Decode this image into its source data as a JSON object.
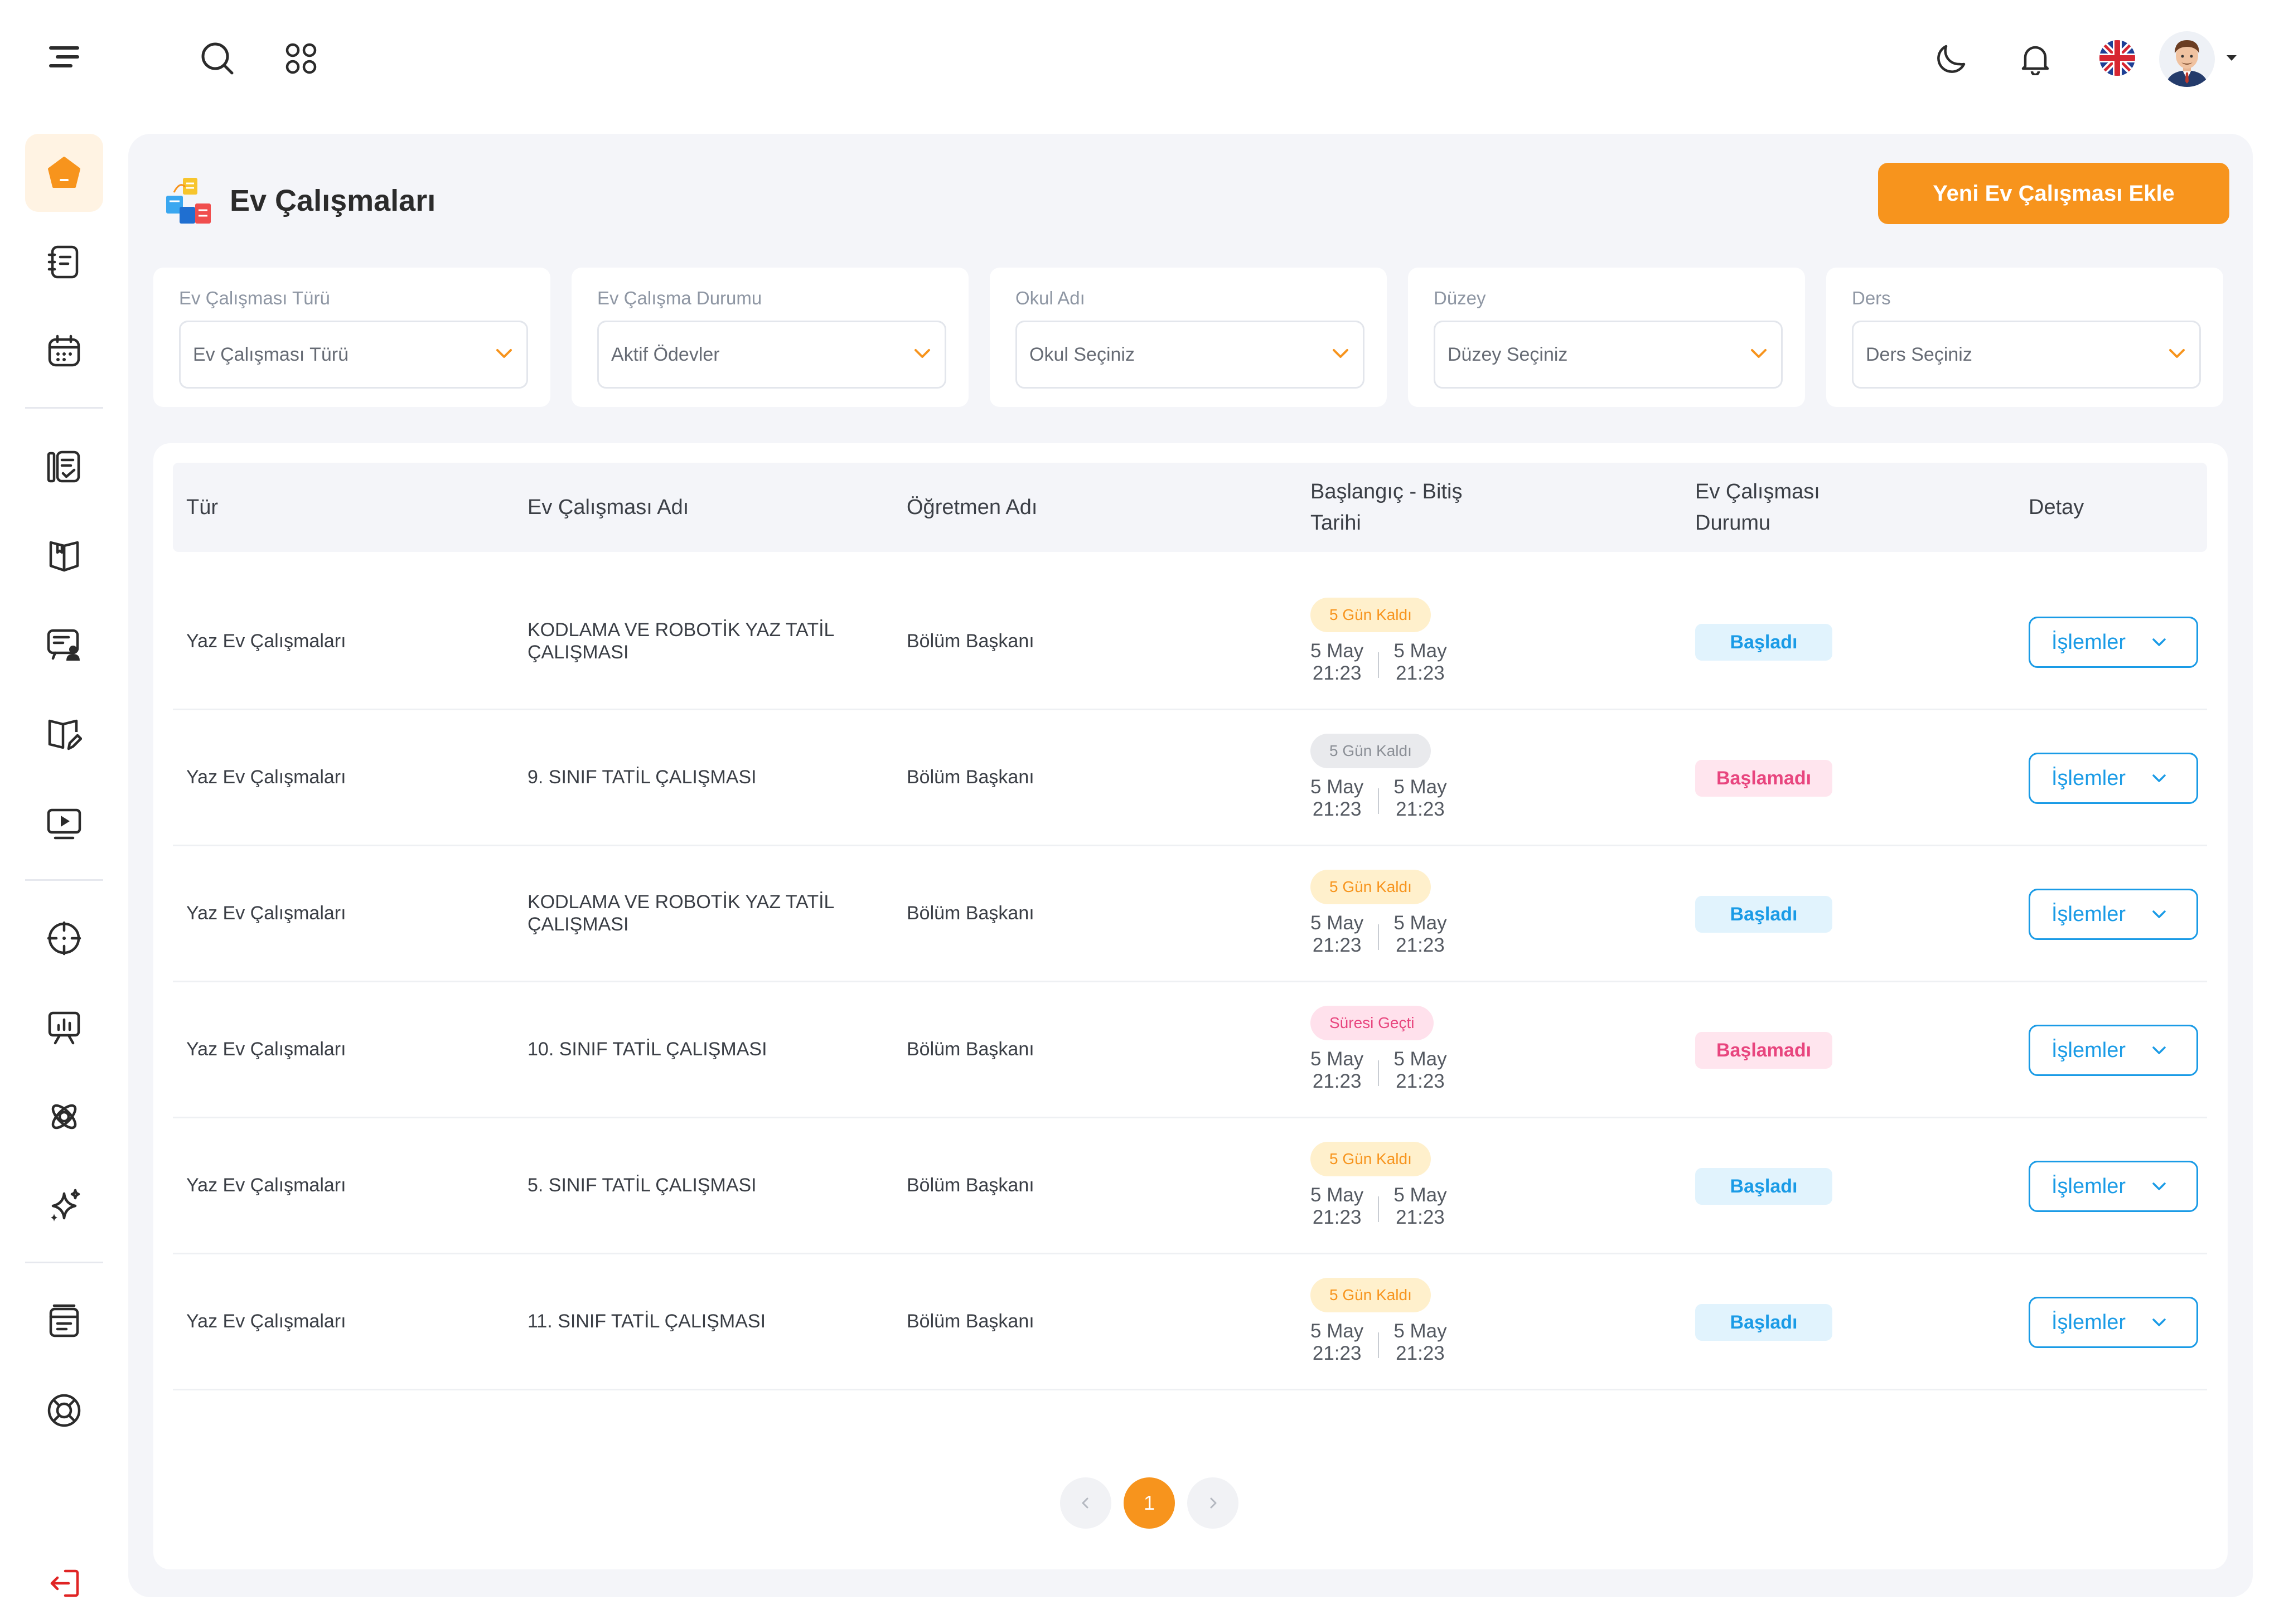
{
  "topbar": {
    "icons": [
      "menu-icon",
      "search-icon",
      "apps-icon",
      "moon-icon",
      "bell-icon",
      "uk-flag-icon",
      "avatar",
      "caret-down-icon"
    ]
  },
  "sidebar": {
    "items": [
      "home-icon",
      "notes-icon",
      "calendar-icon",
      "checklist-icon",
      "book-open-icon",
      "presentation-user-icon",
      "book-edit-icon",
      "video-icon",
      "target-icon",
      "chart-board-icon",
      "atom-icon",
      "sparkles-icon",
      "archive-icon",
      "support-icon",
      "logout-icon"
    ],
    "active": "home-icon"
  },
  "page": {
    "title": "Ev Çalışmaları",
    "add_button": "Yeni Ev Çalışması Ekle"
  },
  "filters": [
    {
      "label": "Ev Çalışması Türü",
      "value": "Ev Çalışması Türü"
    },
    {
      "label": "Ev Çalışma Durumu",
      "value": "Aktif Ödevler"
    },
    {
      "label": "Okul Adı",
      "value": "Okul Seçiniz"
    },
    {
      "label": "Düzey",
      "value": "Düzey Seçiniz"
    },
    {
      "label": "Ders",
      "value": "Ders Seçiniz"
    }
  ],
  "table": {
    "headers": {
      "type": "Tür",
      "name": "Ev Çalışması Adı",
      "teacher": "Öğretmen Adı",
      "dates_line1": "Başlangıç - Bitiş",
      "dates_line2": "Tarihi",
      "status_line1": "Ev Çalışması",
      "status_line2": "Durumu",
      "detail": "Detay"
    },
    "rows": [
      {
        "type": "Yaz Ev Çalışmaları",
        "name": "KODLAMA VE ROBOTİK YAZ TATİL ÇALIŞMASI",
        "teacher": "Bölüm Başkanı",
        "remaining": "5 Gün Kaldı",
        "remaining_style": "orange",
        "start_date": "5 May",
        "start_time": "21:23",
        "end_date": "5 May",
        "end_time": "21:23",
        "status": "Başladı",
        "status_style": "ok",
        "action": "İşlemler"
      },
      {
        "type": "Yaz Ev Çalışmaları",
        "name": "9. SINIF TATİL ÇALIŞMASI",
        "teacher": "Bölüm Başkanı",
        "remaining": "5 Gün Kaldı",
        "remaining_style": "gray",
        "start_date": "5 May",
        "start_time": "21:23",
        "end_date": "5 May",
        "end_time": "21:23",
        "status": "Başlamadı",
        "status_style": "no",
        "action": "İşlemler"
      },
      {
        "type": "Yaz Ev Çalışmaları",
        "name": "KODLAMA VE ROBOTİK YAZ TATİL ÇALIŞMASI",
        "teacher": "Bölüm Başkanı",
        "remaining": "5 Gün Kaldı",
        "remaining_style": "orange",
        "start_date": "5 May",
        "start_time": "21:23",
        "end_date": "5 May",
        "end_time": "21:23",
        "status": "Başladı",
        "status_style": "ok",
        "action": "İşlemler"
      },
      {
        "type": "Yaz Ev Çalışmaları",
        "name": "10. SINIF TATİL ÇALIŞMASI",
        "teacher": "Bölüm Başkanı",
        "remaining": "Süresi Geçti",
        "remaining_style": "pink",
        "start_date": "5 May",
        "start_time": "21:23",
        "end_date": "5 May",
        "end_time": "21:23",
        "status": "Başlamadı",
        "status_style": "no",
        "action": "İşlemler"
      },
      {
        "type": "Yaz Ev Çalışmaları",
        "name": "5. SINIF TATİL ÇALIŞMASI",
        "teacher": "Bölüm Başkanı",
        "remaining": "5 Gün Kaldı",
        "remaining_style": "orange",
        "start_date": "5 May",
        "start_time": "21:23",
        "end_date": "5 May",
        "end_time": "21:23",
        "status": "Başladı",
        "status_style": "ok",
        "action": "İşlemler"
      },
      {
        "type": "Yaz Ev Çalışmaları",
        "name": "11. SINIF TATİL ÇALIŞMASI",
        "teacher": "Bölüm Başkanı",
        "remaining": "5 Gün Kaldı",
        "remaining_style": "orange",
        "start_date": "5 May",
        "start_time": "21:23",
        "end_date": "5 May",
        "end_time": "21:23",
        "status": "Başladı",
        "status_style": "ok",
        "action": "İşlemler"
      }
    ]
  },
  "pagination": {
    "current": "1"
  },
  "colors": {
    "accent": "#f7941d",
    "primary_blue": "#1a9be6",
    "pink": "#e8457e",
    "panel_bg": "#f4f5f9"
  }
}
